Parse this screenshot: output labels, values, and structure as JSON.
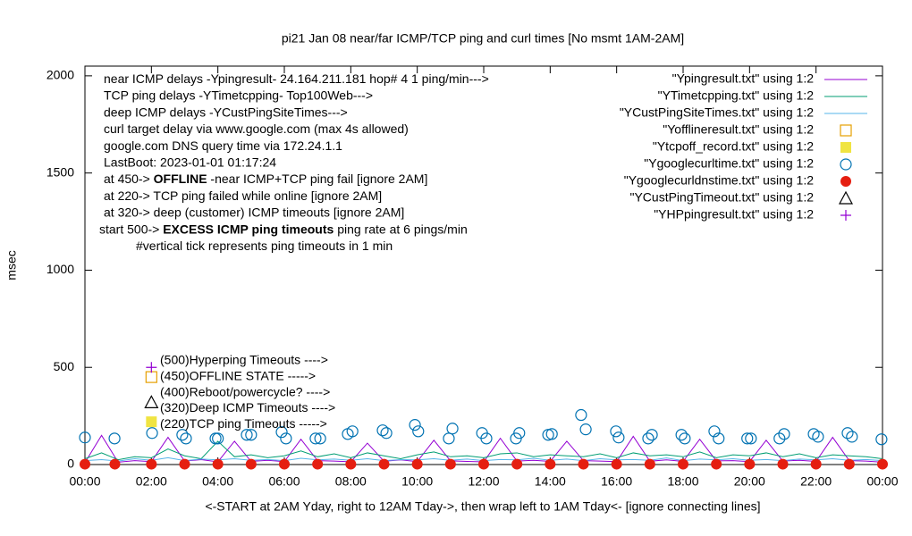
{
  "chart_data": {
    "type": "line",
    "title": "pi21 Jan 08  near/far ICMP/TCP ping and curl times [No msmt 1AM-2AM]",
    "xlabel": "<-START at 2AM Yday, right to 12AM Tday->, then wrap left to 1AM Tday<- [ignore connecting lines]",
    "ylabel": "msec",
    "xlim": [
      0,
      24
    ],
    "xticks": [
      {
        "value": 0,
        "label": "00:00"
      },
      {
        "value": 2,
        "label": "02:00"
      },
      {
        "value": 4,
        "label": "04:00"
      },
      {
        "value": 6,
        "label": "06:00"
      },
      {
        "value": 8,
        "label": "08:00"
      },
      {
        "value": 10,
        "label": "10:00"
      },
      {
        "value": 12,
        "label": "12:00"
      },
      {
        "value": 14,
        "label": "14:00"
      },
      {
        "value": 16,
        "label": "16:00"
      },
      {
        "value": 18,
        "label": "18:00"
      },
      {
        "value": 20,
        "label": "20:00"
      },
      {
        "value": 22,
        "label": "22:00"
      },
      {
        "value": 24,
        "label": "00:00"
      }
    ],
    "ylim": [
      0,
      2050
    ],
    "yticks": [
      0,
      500,
      1000,
      1500,
      2000
    ],
    "annotations": [
      [
        {
          "text": "near ICMP delays -Ypingresult- 24.164.211.181 hop# 4 1 ping/min--->"
        }
      ],
      [
        {
          "text": "TCP ping delays -YTimetcpping- Top100Web--->"
        }
      ],
      [
        {
          "text": "deep ICMP delays -YCustPingSiteTimes--->"
        }
      ],
      [
        {
          "text": "curl target delay via www.google.com (max 4s allowed)"
        }
      ],
      [
        {
          "text": "google.com DNS query time via 172.24.1.1"
        }
      ],
      [
        {
          "text": "LastBoot: 2023-01-01 01:17:24"
        }
      ],
      [
        {
          "text": "at 450-> "
        },
        {
          "text": "OFFLINE",
          "bold": true
        },
        {
          "text": " -near ICMP+TCP ping fail [ignore 2AM]"
        }
      ],
      [
        {
          "text": "at 220-> TCP ping failed while online [ignore 2AM]"
        }
      ],
      [
        {
          "text": "at 320-> deep (customer) ICMP timeouts [ignore 2AM]"
        }
      ],
      [
        {
          "text": "start 500-> "
        },
        {
          "text": "EXCESS ICMP ping timeouts",
          "bold": true
        },
        {
          "text": "  ping rate at 6 pings/min"
        }
      ],
      [
        {
          "text": "#vertical tick represents ping timeouts in 1 min"
        }
      ]
    ],
    "key_notes": [
      "(500)Hyperping Timeouts ---->",
      "(450)OFFLINE STATE ----->",
      "(400)Reboot/powercycle? ---->",
      "(320)Deep ICMP Timeouts ---->",
      "(220)TCP ping Timeouts ----->"
    ],
    "x": [
      0,
      0.5,
      1,
      1.5,
      2,
      2.5,
      3,
      3.5,
      4,
      4.5,
      5,
      5.5,
      6,
      6.5,
      7,
      7.5,
      8,
      8.5,
      9,
      9.5,
      10,
      10.5,
      11,
      11.5,
      12,
      12.5,
      13,
      13.5,
      14,
      14.5,
      15,
      15.5,
      16,
      16.5,
      17,
      17.5,
      18,
      18.5,
      19,
      19.5,
      20,
      20.5,
      21,
      21.5,
      22,
      22.5,
      23,
      23.5,
      24
    ],
    "series": [
      {
        "name": "\"Ypingresult.txt\" using 1:2",
        "color": "#9400d3",
        "marker": "line",
        "values": [
          10,
          150,
          12,
          20,
          15,
          140,
          18,
          25,
          14,
          120,
          16,
          22,
          15,
          130,
          20,
          18,
          14,
          110,
          17,
          24,
          15,
          125,
          19,
          16,
          14,
          135,
          18,
          22,
          16,
          120,
          20,
          18,
          15,
          145,
          17,
          24,
          16,
          130,
          19,
          20,
          15,
          125,
          18,
          22,
          16,
          140,
          20,
          18,
          12
        ]
      },
      {
        "name": "\"YTimetcpping.txt\" using 1:2",
        "color": "#009e73",
        "marker": "line",
        "values": [
          30,
          60,
          25,
          40,
          35,
          80,
          45,
          30,
          120,
          40,
          50,
          35,
          45,
          70,
          40,
          55,
          35,
          60,
          45,
          30,
          50,
          65,
          40,
          45,
          35,
          55,
          60,
          40,
          50,
          45,
          40,
          55,
          35,
          60,
          45,
          50,
          40,
          65,
          35,
          50,
          45,
          60,
          40,
          55,
          35,
          50,
          45,
          40,
          30
        ]
      },
      {
        "name": "\"YCustPingSiteTimes.txt\" using 1:2",
        "color": "#56b4e9",
        "marker": "line",
        "values": [
          20,
          25,
          18,
          30,
          22,
          35,
          20,
          28,
          24,
          30,
          22,
          26,
          20,
          32,
          24,
          28,
          22,
          30,
          20,
          25,
          24,
          30,
          22,
          28,
          20,
          26,
          24,
          32,
          22,
          28,
          20,
          30,
          24,
          26,
          22,
          34,
          20,
          28,
          24,
          30,
          22,
          26,
          20,
          28,
          24,
          30,
          22,
          26,
          20
        ]
      },
      {
        "name": "\"Yofflineresult.txt\" using 1:2",
        "color": "#e69f00",
        "marker": "open-square",
        "x": [
          2
        ],
        "values": [
          450
        ]
      },
      {
        "name": "\"Ytcpoff_record.txt\" using 1:2",
        "color": "#f0e442",
        "marker": "filled-square",
        "x": [
          2
        ],
        "values": [
          220
        ]
      },
      {
        "name": "\"Ygooglecurltime.txt\" using 1:2",
        "color": "#0072b2",
        "marker": "open-circle",
        "x": [
          0,
          0.89,
          2.02,
          2.93,
          3.04,
          3.93,
          4.0,
          4.87,
          5.0,
          5.92,
          6.05,
          6.94,
          7.08,
          7.91,
          8.05,
          8.96,
          9.07,
          9.93,
          10.03,
          10.95,
          11.06,
          11.95,
          12.08,
          12.97,
          13.07,
          13.94,
          14.05,
          14.93,
          15.07,
          15.98,
          16.06,
          16.95,
          17.06,
          17.95,
          18.05,
          18.94,
          19.07,
          19.93,
          20.04,
          20.9,
          21.04,
          21.93,
          22.06,
          22.95,
          23.08,
          23.97
        ],
        "values": [
          139,
          134,
          162,
          153,
          134,
          134,
          134,
          153,
          153,
          167,
          134,
          134,
          134,
          157,
          171,
          176,
          162,
          204,
          171,
          134,
          185,
          162,
          134,
          134,
          162,
          153,
          157,
          255,
          181,
          171,
          139,
          134,
          153,
          153,
          134,
          171,
          134,
          134,
          134,
          134,
          157,
          157,
          143,
          162,
          143,
          130
        ]
      },
      {
        "name": "\"Ygooglecurldnstime.txt\" using 1:2",
        "color": "#e51e10",
        "marker": "filled-circle",
        "x": [
          0,
          0.9,
          2,
          3,
          4,
          5,
          6,
          7,
          8,
          9,
          10,
          11,
          12,
          13,
          14,
          15,
          16,
          17,
          18,
          19,
          20,
          21,
          22,
          23,
          24
        ],
        "values": [
          2,
          2,
          2,
          2,
          2,
          2,
          2,
          2,
          2,
          2,
          2,
          2,
          2,
          2,
          2,
          2,
          2,
          2,
          2,
          2,
          2,
          2,
          2,
          2,
          2
        ]
      },
      {
        "name": "\"YCustPingTimeout.txt\" using 1:2",
        "color": "#000000",
        "marker": "open-triangle",
        "x": [
          2
        ],
        "values": [
          320
        ]
      },
      {
        "name": "\"YHPpingresult.txt\" using 1:2",
        "color": "#9400d3",
        "marker": "plus",
        "x": [
          2
        ],
        "values": [
          500
        ]
      }
    ]
  }
}
